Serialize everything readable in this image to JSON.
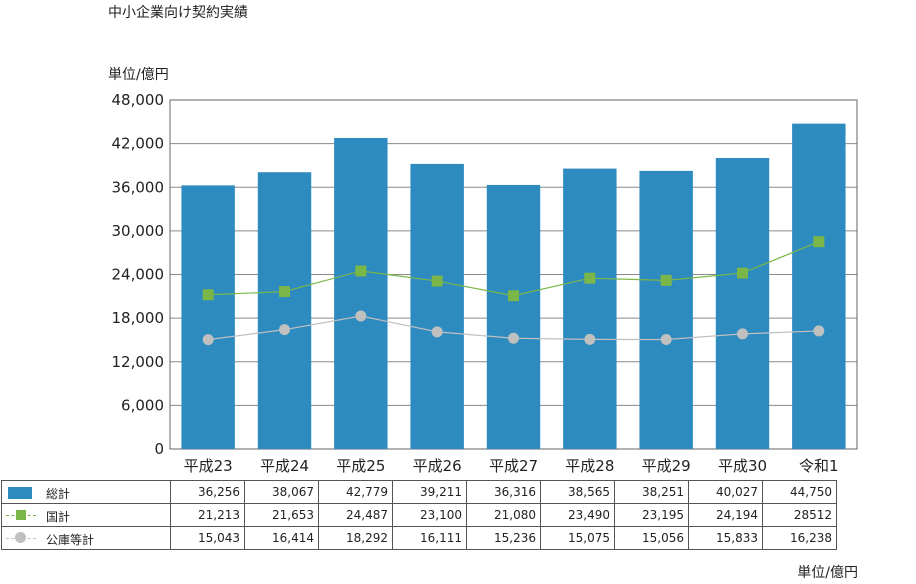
{
  "title": "中小企業向け契約実績",
  "unit_label": "単位/億円",
  "colors": {
    "bar": "#2d8bbf",
    "line_national": "#7ab648",
    "line_public": "#c0c0c0"
  },
  "chart_data": {
    "type": "bar",
    "title": "中小企業向け契約実績",
    "ylabel": "単位/億円",
    "ylim": [
      0,
      48000
    ],
    "yticks": [
      0,
      6000,
      12000,
      18000,
      24000,
      30000,
      36000,
      42000,
      48000
    ],
    "ytick_labels": [
      "0",
      "6,000",
      "12,000",
      "18,000",
      "24,000",
      "30,000",
      "36,000",
      "42,000",
      "48,000"
    ],
    "categories": [
      "平成23",
      "平成24",
      "平成25",
      "平成26",
      "平成27",
      "平成28",
      "平成29",
      "平成30",
      "令和1"
    ],
    "grid": true,
    "series": [
      {
        "name": "総計",
        "type": "bar",
        "values": [
          36256,
          38067,
          42779,
          39211,
          36316,
          38565,
          38251,
          40027,
          44750
        ],
        "labels": [
          "36,256",
          "38,067",
          "42,779",
          "39,211",
          "36,316",
          "38,565",
          "38,251",
          "40,027",
          "44,750"
        ]
      },
      {
        "name": "国計",
        "type": "line",
        "values": [
          21213,
          21653,
          24487,
          23100,
          21080,
          23490,
          23195,
          24194,
          28512
        ],
        "labels": [
          "21,213",
          "21,653",
          "24,487",
          "23,100",
          "21,080",
          "23,490",
          "23,195",
          "24,194",
          "28512"
        ]
      },
      {
        "name": "公庫等計",
        "type": "line",
        "values": [
          15043,
          16414,
          18292,
          16111,
          15236,
          15075,
          15056,
          15833,
          16238
        ],
        "labels": [
          "15,043",
          "16,414",
          "18,292",
          "16,111",
          "15,236",
          "15,075",
          "15,056",
          "15,833",
          "16,238"
        ]
      }
    ]
  }
}
